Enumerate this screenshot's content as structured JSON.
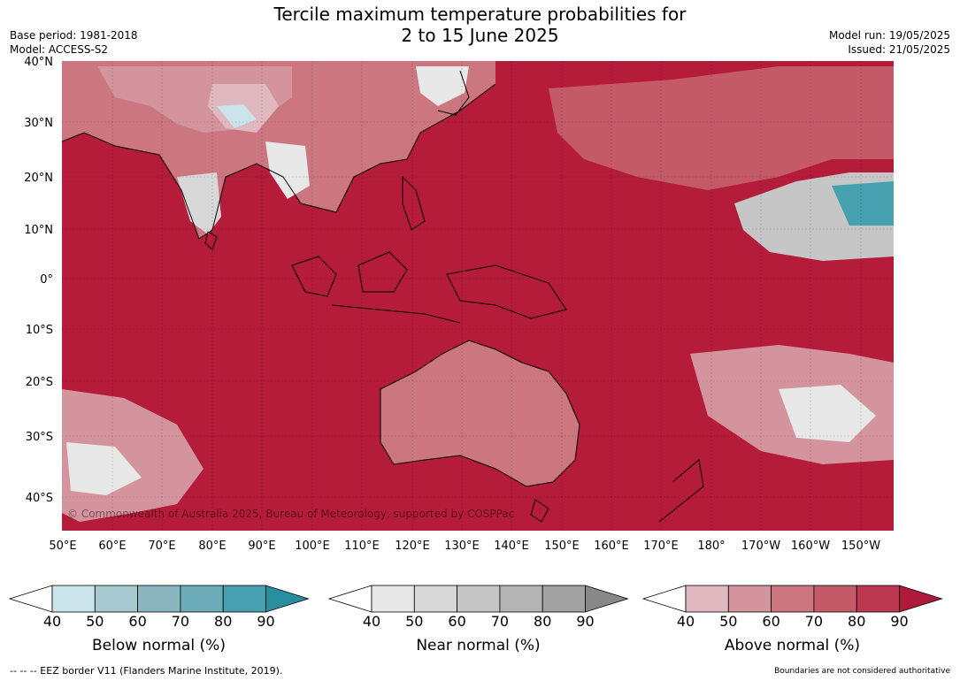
{
  "title_line1": "Tercile maximum temperature probabilities for",
  "title_line2": "2 to 15 June 2025",
  "base_period": "Base period: 1981-2018",
  "model": "Model: ACCESS-S2",
  "model_run": "Model run: 19/05/2025",
  "issued": "Issued: 21/05/2025",
  "copyright": "© Commonwealth of Australia 2025, Bureau of Meteorology, supported by COSPPac",
  "lat_labels": [
    "40°N",
    "30°N",
    "20°N",
    "10°N",
    "0°",
    "10°S",
    "20°S",
    "30°S",
    "40°S"
  ],
  "lon_labels": [
    "50°E",
    "60°E",
    "70°E",
    "80°E",
    "90°E",
    "100°E",
    "110°E",
    "120°E",
    "130°E",
    "140°E",
    "150°E",
    "160°E",
    "170°E",
    "180°",
    "170°W",
    "160°W",
    "150°W"
  ],
  "colorbars": [
    {
      "label": "Below normal (%)",
      "ticks": [
        "40",
        "50",
        "60",
        "70",
        "80",
        "90"
      ],
      "colors": [
        "#cbe3ea",
        "#a6c8cf",
        "#8ab6bf",
        "#6cacb8",
        "#46a0b0"
      ],
      "extend_color": "#2a8ea1"
    },
    {
      "label": "Near normal (%)",
      "ticks": [
        "40",
        "50",
        "60",
        "70",
        "80",
        "90"
      ],
      "colors": [
        "#e8e8e8",
        "#d8d8d8",
        "#c6c6c6",
        "#b4b4b4",
        "#a2a2a2"
      ],
      "extend_color": "#888888"
    },
    {
      "label": "Above normal (%)",
      "ticks": [
        "40",
        "50",
        "60",
        "70",
        "80",
        "90"
      ],
      "colors": [
        "#e0b8bf",
        "#d4949d",
        "#cc7680",
        "#c45a68",
        "#bb3850"
      ],
      "extend_color": "#b01a3a"
    }
  ],
  "eez_note": "--  --  -- EEZ border V11 (Flanders Marine Institute, 2019).",
  "boundaries_note": "Boundaries are not considered authoritative"
}
